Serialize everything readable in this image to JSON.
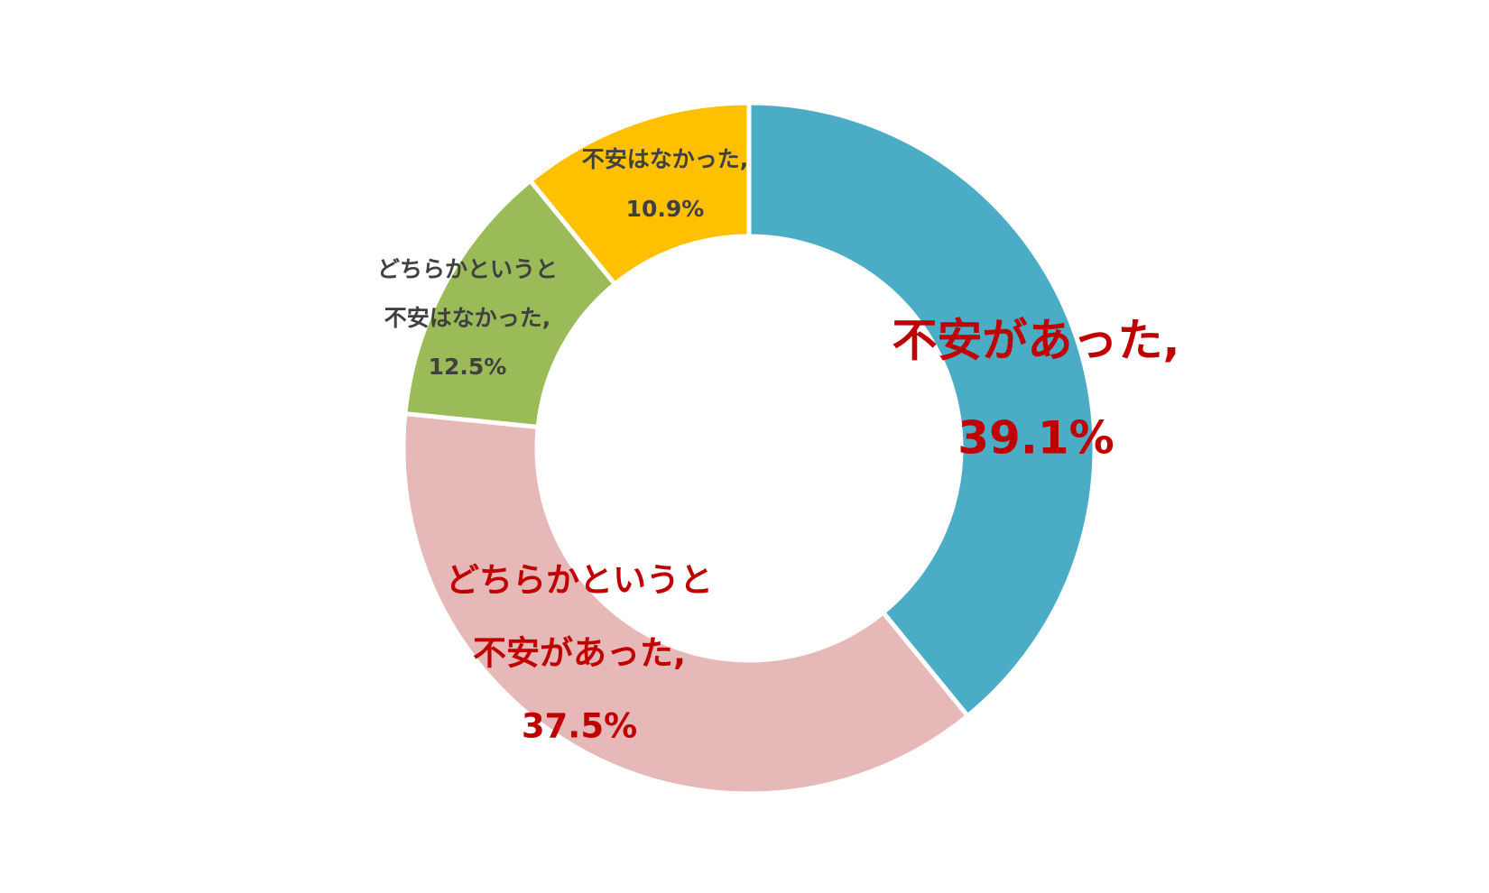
{
  "chart_data": {
    "type": "donut",
    "categories": [
      [
        "不安があった,"
      ],
      [
        "どちらかというと",
        "不安があった,"
      ],
      [
        "どちらかというと",
        "不安はなかった,"
      ],
      [
        "不安はなかった,"
      ]
    ],
    "values": [
      39.1,
      37.5,
      12.5,
      10.9
    ],
    "value_labels": [
      "39.1%",
      "37.5%",
      "12.5%",
      "10.9%"
    ],
    "colors": [
      "#4BACC6",
      "#E6B9B8",
      "#9BBB59",
      "#FFC000"
    ],
    "label_colors": [
      "#C00000",
      "#C00000",
      "#404040",
      "#404040"
    ]
  }
}
